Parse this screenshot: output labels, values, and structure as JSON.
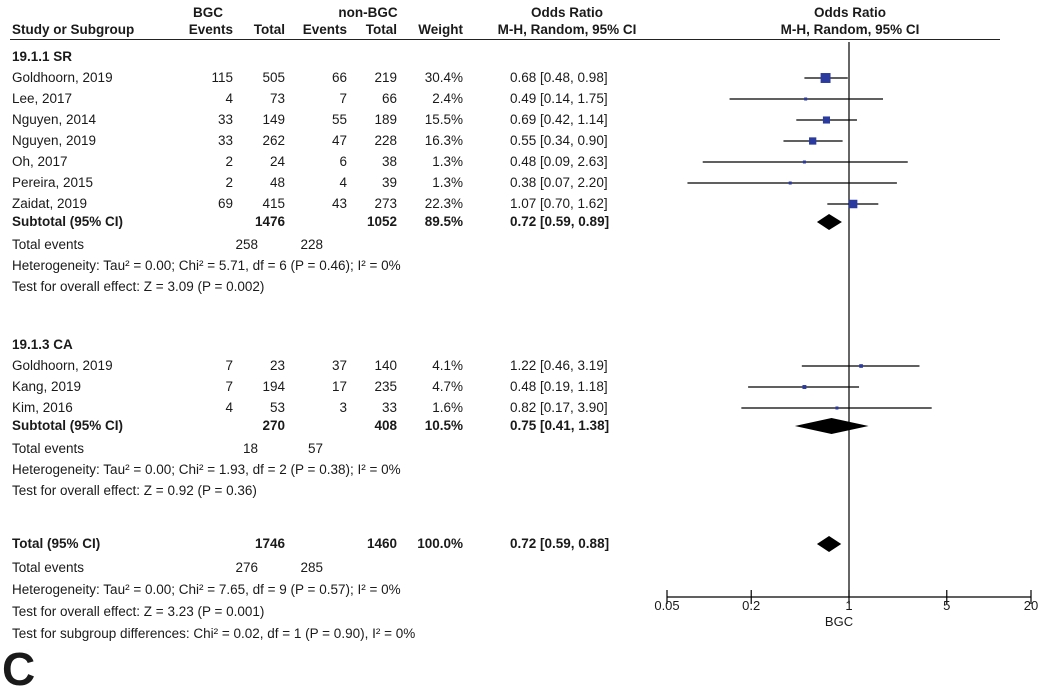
{
  "panel_label": "C",
  "chart_data": {
    "type": "forest",
    "headers": {
      "group1": "BGC",
      "group2": "non-BGC",
      "study": "Study or Subgroup",
      "events1": "Events",
      "total1": "Total",
      "events2": "Events",
      "total2": "Total",
      "weight": "Weight",
      "or_title": "Odds Ratio",
      "or_method": "M-H, Random, 95% CI",
      "plot_title": "Odds Ratio",
      "plot_method": "M-H, Random, 95% CI"
    },
    "subgroups": [
      {
        "label": "19.1.1 SR",
        "studies": [
          {
            "name": "Goldhoorn, 2019",
            "events1": "115",
            "total1": "505",
            "events2": "66",
            "total2": "219",
            "weight": "30.4%",
            "ci_text": "0.68 [0.48, 0.98]",
            "or": 0.68,
            "lo": 0.48,
            "hi": 0.98,
            "w": 30.4
          },
          {
            "name": "Lee, 2017",
            "events1": "4",
            "total1": "73",
            "events2": "7",
            "total2": "66",
            "weight": "2.4%",
            "ci_text": "0.49 [0.14, 1.75]",
            "or": 0.49,
            "lo": 0.14,
            "hi": 1.75,
            "w": 2.4
          },
          {
            "name": "Nguyen, 2014",
            "events1": "33",
            "total1": "149",
            "events2": "55",
            "total2": "189",
            "weight": "15.5%",
            "ci_text": "0.69 [0.42, 1.14]",
            "or": 0.69,
            "lo": 0.42,
            "hi": 1.14,
            "w": 15.5
          },
          {
            "name": "Nguyen, 2019",
            "events1": "33",
            "total1": "262",
            "events2": "47",
            "total2": "228",
            "weight": "16.3%",
            "ci_text": "0.55 [0.34, 0.90]",
            "or": 0.55,
            "lo": 0.34,
            "hi": 0.9,
            "w": 16.3
          },
          {
            "name": "Oh, 2017",
            "events1": "2",
            "total1": "24",
            "events2": "6",
            "total2": "38",
            "weight": "1.3%",
            "ci_text": "0.48 [0.09, 2.63]",
            "or": 0.48,
            "lo": 0.09,
            "hi": 2.63,
            "w": 1.3
          },
          {
            "name": "Pereira, 2015",
            "events1": "2",
            "total1": "48",
            "events2": "4",
            "total2": "39",
            "weight": "1.3%",
            "ci_text": "0.38 [0.07, 2.20]",
            "or": 0.38,
            "lo": 0.07,
            "hi": 2.2,
            "w": 1.3
          },
          {
            "name": "Zaidat, 2019",
            "events1": "69",
            "total1": "415",
            "events2": "43",
            "total2": "273",
            "weight": "22.3%",
            "ci_text": "1.07 [0.70, 1.62]",
            "or": 1.07,
            "lo": 0.7,
            "hi": 1.62,
            "w": 22.3
          }
        ],
        "subtotal": {
          "label": "Subtotal (95% CI)",
          "total1": "1476",
          "total2": "1052",
          "weight": "89.5%",
          "ci_text": "0.72 [0.59, 0.89]",
          "or": 0.72,
          "lo": 0.59,
          "hi": 0.89
        },
        "total_events": {
          "label": "Total events",
          "events1": "258",
          "events2": "228"
        },
        "heterogeneity": "Heterogeneity: Tau² = 0.00; Chi² = 5.71, df = 6 (P = 0.46); I² = 0%",
        "overall_effect": "Test for overall effect: Z = 3.09 (P = 0.002)"
      },
      {
        "label": "19.1.3 CA",
        "studies": [
          {
            "name": "Goldhoorn, 2019",
            "events1": "7",
            "total1": "23",
            "events2": "37",
            "total2": "140",
            "weight": "4.1%",
            "ci_text": "1.22 [0.46, 3.19]",
            "or": 1.22,
            "lo": 0.46,
            "hi": 3.19,
            "w": 4.1
          },
          {
            "name": "Kang, 2019",
            "events1": "7",
            "total1": "194",
            "events2": "17",
            "total2": "235",
            "weight": "4.7%",
            "ci_text": "0.48 [0.19, 1.18]",
            "or": 0.48,
            "lo": 0.19,
            "hi": 1.18,
            "w": 4.7
          },
          {
            "name": "Kim, 2016",
            "events1": "4",
            "total1": "53",
            "events2": "3",
            "total2": "33",
            "weight": "1.6%",
            "ci_text": "0.82 [0.17, 3.90]",
            "or": 0.82,
            "lo": 0.17,
            "hi": 3.9,
            "w": 1.6
          }
        ],
        "subtotal": {
          "label": "Subtotal (95% CI)",
          "total1": "270",
          "total2": "408",
          "weight": "10.5%",
          "ci_text": "0.75 [0.41, 1.38]",
          "or": 0.75,
          "lo": 0.41,
          "hi": 1.38
        },
        "total_events": {
          "label": "Total events",
          "events1": "18",
          "events2": "57"
        },
        "heterogeneity": "Heterogeneity: Tau² = 0.00; Chi² = 1.93, df = 2 (P = 0.38); I² = 0%",
        "overall_effect": "Test for overall effect: Z = 0.92 (P = 0.36)"
      }
    ],
    "total": {
      "label": "Total (95% CI)",
      "total1": "1746",
      "total2": "1460",
      "weight": "100.0%",
      "ci_text": "0.72 [0.59, 0.88]",
      "or": 0.72,
      "lo": 0.59,
      "hi": 0.88
    },
    "total_events": {
      "label": "Total events",
      "events1": "276",
      "events2": "285"
    },
    "heterogeneity": "Heterogeneity: Tau² = 0.00; Chi² = 7.65, df = 9 (P = 0.57); I² = 0%",
    "overall_effect": "Test for overall effect: Z = 3.23 (P = 0.001)",
    "subgroup_diff": "Test for subgroup differences: Chi² = 0.02, df = 1 (P = 0.90), I² = 0%",
    "x_axis": {
      "scale": "log",
      "range": [
        0.05,
        20
      ],
      "ticks": [
        0.05,
        0.2,
        1,
        5,
        20
      ],
      "tick_labels": [
        "0.05",
        "0.2",
        "1",
        "5",
        "20"
      ],
      "label": "BGC"
    },
    "colors": {
      "study_marker": "#2a3a9e",
      "diamond": "#000000",
      "ci_line": "#000000"
    }
  }
}
